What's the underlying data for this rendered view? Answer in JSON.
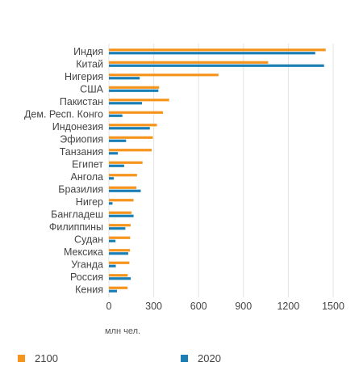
{
  "chart_data": {
    "type": "bar",
    "orientation": "horizontal",
    "categories": [
      "Индия",
      "Китай",
      "Нигерия",
      "США",
      "Пакистан",
      "Дем. Респ. Конго",
      "Индонезия",
      "Эфиопия",
      "Танзания",
      "Египет",
      "Ангола",
      "Бразилия",
      "Нигер",
      "Бангладеш",
      "Филиппины",
      "Судан",
      "Мексика",
      "Уганда",
      "Россия",
      "Кения"
    ],
    "series": [
      {
        "name": "2100",
        "color": "#f7941d",
        "values": [
          1450,
          1065,
          733,
          336,
          403,
          362,
          321,
          294,
          286,
          225,
          188,
          184,
          165,
          151,
          145,
          142,
          141,
          137,
          126,
          125
        ]
      },
      {
        "name": "2020",
        "color": "#1b7fb5",
        "values": [
          1380,
          1439,
          206,
          331,
          221,
          90,
          274,
          115,
          60,
          102,
          33,
          213,
          24,
          165,
          110,
          44,
          129,
          46,
          146,
          54
        ]
      }
    ],
    "xticks": [
      "0",
      "300",
      "600",
      "900",
      "1200",
      "1500"
    ],
    "xlim": [
      0,
      1500
    ],
    "xlabel": "млн чел.",
    "grid": true,
    "legend_position": "bottom"
  }
}
